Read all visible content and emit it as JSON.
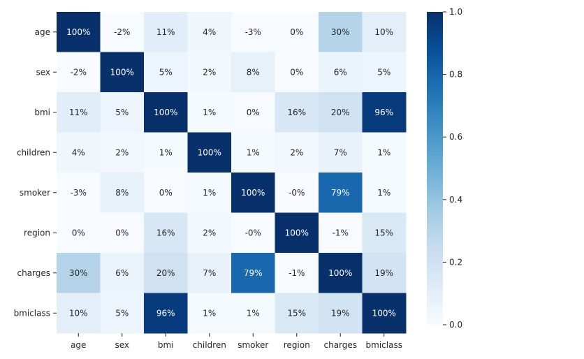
{
  "chart_data": {
    "type": "heatmap",
    "title": "",
    "xlabel": "",
    "ylabel": "",
    "x_categories": [
      "age",
      "sex",
      "bmi",
      "children",
      "smoker",
      "region",
      "charges",
      "bmiclass"
    ],
    "y_categories": [
      "age",
      "sex",
      "bmi",
      "children",
      "smoker",
      "region",
      "charges",
      "bmiclass"
    ],
    "values": [
      [
        1.0,
        -0.02,
        0.11,
        0.04,
        -0.03,
        0.0,
        0.3,
        0.1
      ],
      [
        -0.02,
        1.0,
        0.05,
        0.02,
        0.08,
        0.0,
        0.06,
        0.05
      ],
      [
        0.11,
        0.05,
        1.0,
        0.01,
        0.0,
        0.16,
        0.2,
        0.96
      ],
      [
        0.04,
        0.02,
        0.01,
        1.0,
        0.01,
        0.02,
        0.07,
        0.01
      ],
      [
        -0.03,
        0.08,
        0.0,
        0.01,
        1.0,
        -0.0,
        0.79,
        0.01
      ],
      [
        0.0,
        0.0,
        0.16,
        0.02,
        -0.0,
        1.0,
        -0.01,
        0.15
      ],
      [
        0.3,
        0.06,
        0.2,
        0.07,
        0.79,
        -0.01,
        1.0,
        0.19
      ],
      [
        0.1,
        0.05,
        0.96,
        0.01,
        0.01,
        0.15,
        0.19,
        1.0
      ]
    ],
    "cell_labels": [
      [
        "100%",
        "-2%",
        "11%",
        "4%",
        "-3%",
        "0%",
        "30%",
        "10%"
      ],
      [
        "-2%",
        "100%",
        "5%",
        "2%",
        "8%",
        "0%",
        "6%",
        "5%"
      ],
      [
        "11%",
        "5%",
        "100%",
        "1%",
        "0%",
        "16%",
        "20%",
        "96%"
      ],
      [
        "4%",
        "2%",
        "1%",
        "100%",
        "1%",
        "2%",
        "7%",
        "1%"
      ],
      [
        "-3%",
        "8%",
        "0%",
        "1%",
        "100%",
        "-0%",
        "79%",
        "1%"
      ],
      [
        "0%",
        "0%",
        "16%",
        "2%",
        "-0%",
        "100%",
        "-1%",
        "15%"
      ],
      [
        "30%",
        "6%",
        "20%",
        "7%",
        "79%",
        "-1%",
        "100%",
        "19%"
      ],
      [
        "10%",
        "5%",
        "96%",
        "1%",
        "1%",
        "15%",
        "19%",
        "100%"
      ]
    ],
    "colorbar": {
      "ticks": [
        0.0,
        0.2,
        0.4,
        0.6,
        0.8,
        1.0
      ],
      "tick_labels": [
        "0.0",
        "0.2",
        "0.4",
        "0.6",
        "0.8",
        "1.0"
      ],
      "range": [
        0.0,
        1.0
      ]
    },
    "colormap": [
      "#f7fbff",
      "#deebf7",
      "#c6dbef",
      "#9ecae1",
      "#6baed6",
      "#4292c6",
      "#2171b5",
      "#08519c",
      "#08306b"
    ],
    "grid": false,
    "legend": "colorbar-right"
  }
}
